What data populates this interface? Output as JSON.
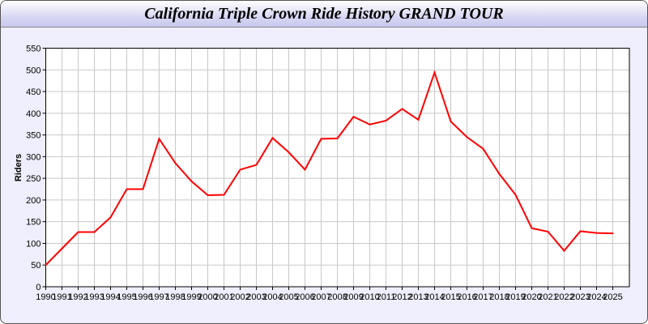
{
  "chart_data": {
    "type": "line",
    "title": "California Triple Crown Ride History GRAND TOUR",
    "xlabel": "",
    "ylabel": "Riders",
    "ylim": [
      0,
      550
    ],
    "yticks": [
      0,
      50,
      100,
      150,
      200,
      250,
      300,
      350,
      400,
      450,
      500,
      550
    ],
    "grid": true,
    "line_color": "#ff0000",
    "x": [
      1990,
      1991,
      1992,
      1993,
      1994,
      1995,
      1996,
      1997,
      1998,
      1999,
      2000,
      2001,
      2002,
      2003,
      2004,
      2005,
      2006,
      2007,
      2008,
      2009,
      2010,
      2011,
      2012,
      2013,
      2014,
      2015,
      2016,
      2017,
      2018,
      2019,
      2020,
      2021,
      2022,
      2023,
      2024,
      2025
    ],
    "series": [
      {
        "values": [
          50,
          88,
          126,
          126,
          160,
          225,
          225,
          341,
          285,
          243,
          211,
          212,
          270,
          281,
          343,
          310,
          270,
          341,
          342,
          392,
          374,
          383,
          410,
          385,
          494,
          381,
          345,
          318,
          260,
          212,
          135,
          127,
          83,
          128,
          124,
          123
        ]
      }
    ]
  }
}
